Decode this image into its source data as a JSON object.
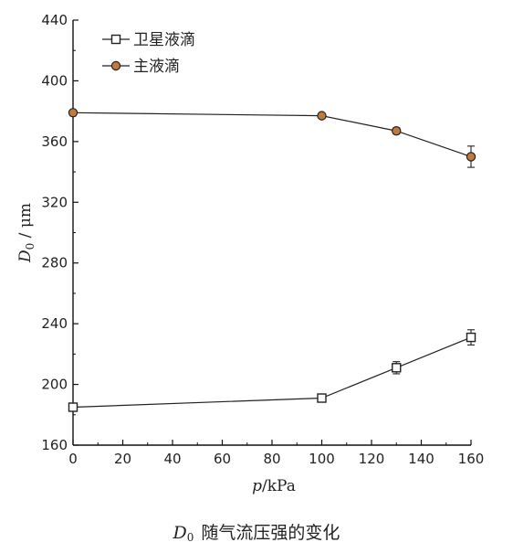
{
  "chart_data": {
    "type": "line",
    "xlabel": {
      "var": "p",
      "unit": "/kPa"
    },
    "ylabel": {
      "var": "D",
      "sub": "0",
      "unit": " / μm"
    },
    "xlim": [
      0,
      160
    ],
    "ylim": [
      160,
      440
    ],
    "xticks": [
      0,
      20,
      40,
      60,
      80,
      100,
      120,
      140,
      160
    ],
    "yticks": [
      160,
      200,
      240,
      280,
      320,
      360,
      400,
      440
    ],
    "grid": false,
    "legend_position": "top-left",
    "series": [
      {
        "name": "卫星液滴",
        "marker": "open-square",
        "color": "#222222",
        "x": [
          0,
          100,
          130,
          160
        ],
        "y": [
          185,
          191,
          211,
          231
        ],
        "err": [
          0,
          0,
          4,
          5
        ]
      },
      {
        "name": "主液滴",
        "marker": "filled-circle",
        "color": "#222222",
        "fill": "#c07a3e",
        "x": [
          0,
          100,
          130,
          160
        ],
        "y": [
          379,
          377,
          367,
          350
        ],
        "err": [
          0,
          0,
          2,
          7
        ]
      }
    ]
  },
  "caption": {
    "var": "D",
    "sub": "0",
    "text": "随气流压强的变化"
  }
}
